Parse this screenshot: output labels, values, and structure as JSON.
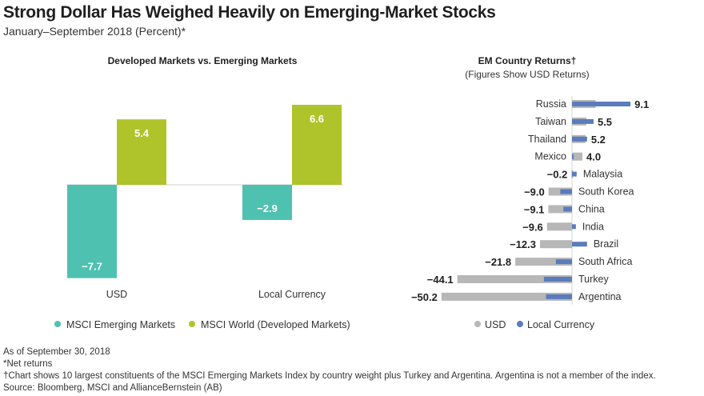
{
  "title": "Strong Dollar Has Weighed Heavily on Emerging-Market Stocks",
  "subtitle": "January–September 2018 (Percent)*",
  "footnotes": {
    "asof": "As of September 30, 2018",
    "net": "*Net returns",
    "dagger": "†Chart shows 10 largest constituents of the MSCI Emerging Markets Index by country weight plus Turkey and Argentina. Argentina is not a member of the index.",
    "source": "Source: Bloomberg, MSCI and AllianceBernstein (AB)"
  },
  "colors": {
    "em": "#4fc1b0",
    "world": "#aec42a",
    "usd": "#b7b7b7",
    "local": "#5a7cbd"
  },
  "chart_data": [
    {
      "type": "bar",
      "title": "Developed Markets vs. Emerging Markets",
      "categories": [
        "USD",
        "Local Currency"
      ],
      "series": [
        {
          "name": "MSCI Emerging Markets",
          "values": [
            -7.7,
            -2.9
          ]
        },
        {
          "name": "MSCI World (Developed Markets)",
          "values": [
            5.4,
            6.6
          ]
        }
      ],
      "data_labels": [
        [
          "−7.7",
          "5.4"
        ],
        [
          "−2.9",
          "6.6"
        ]
      ],
      "legend": "bottom"
    },
    {
      "type": "bar",
      "orientation": "horizontal",
      "title": "EM Country Returns†",
      "subtitle": "(Figures Show USD Returns)",
      "categories": [
        "Russia",
        "Taiwan",
        "Thailand",
        "Mexico",
        "Malaysia",
        "South Korea",
        "China",
        "India",
        "Brazil",
        "South Africa",
        "Turkey",
        "Argentina"
      ],
      "series": [
        {
          "name": "USD",
          "values": [
            9.1,
            5.5,
            5.2,
            4.0,
            -0.2,
            -9.0,
            -9.1,
            -9.6,
            -12.3,
            -21.8,
            -44.1,
            -50.2
          ]
        },
        {
          "name": "Local Currency",
          "values": [
            22.5,
            8.3,
            5.8,
            0.5,
            1.8,
            -4.5,
            -3.3,
            1.5,
            5.8,
            -6.2,
            -10.8,
            -10.0
          ]
        }
      ],
      "usd_labels": [
        "9.1",
        "5.5",
        "5.2",
        "4.0",
        "−0.2",
        "−9.0",
        "−9.1",
        "−9.6",
        "−12.3",
        "−21.8",
        "−44.1",
        "−50.2"
      ],
      "legend": "bottom"
    }
  ]
}
